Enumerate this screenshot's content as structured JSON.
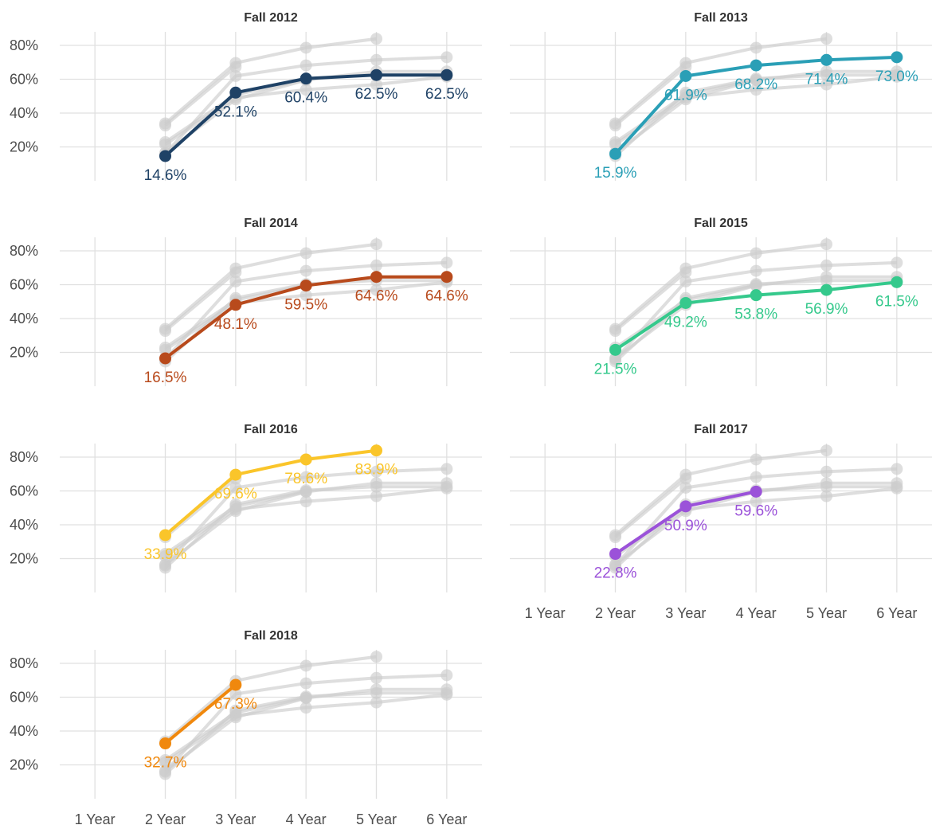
{
  "chart_data": {
    "type": "line",
    "x_categories": [
      "1 Year",
      "2 Year",
      "3 Year",
      "4 Year",
      "5 Year",
      "6 Year"
    ],
    "y_ticks": [
      20,
      40,
      60,
      80
    ],
    "y_tick_labels": [
      "20%",
      "40%",
      "60%",
      "80%"
    ],
    "ylim": [
      0,
      88
    ],
    "grid": true,
    "panels": [
      {
        "title": "Fall 2012",
        "color": "#1f4266",
        "values": [
          null,
          14.6,
          52.1,
          60.4,
          62.5,
          62.5
        ],
        "labels": [
          "",
          "14.6%",
          "52.1%",
          "60.4%",
          "62.5%",
          "62.5%"
        ]
      },
      {
        "title": "Fall 2013",
        "color": "#2a9fb6",
        "values": [
          null,
          15.9,
          61.9,
          68.2,
          71.4,
          73.0
        ],
        "labels": [
          "",
          "15.9%",
          "61.9%",
          "68.2%",
          "71.4%",
          "73.0%"
        ]
      },
      {
        "title": "Fall 2014",
        "color": "#b84a1c",
        "values": [
          null,
          16.5,
          48.1,
          59.5,
          64.6,
          64.6
        ],
        "labels": [
          "",
          "16.5%",
          "48.1%",
          "59.5%",
          "64.6%",
          "64.6%"
        ]
      },
      {
        "title": "Fall 2015",
        "color": "#35c98c",
        "values": [
          null,
          21.5,
          49.2,
          53.8,
          56.9,
          61.5
        ],
        "labels": [
          "",
          "21.5%",
          "49.2%",
          "53.8%",
          "56.9%",
          "61.5%"
        ]
      },
      {
        "title": "Fall 2016",
        "color": "#fac52a",
        "values": [
          null,
          33.9,
          69.6,
          78.6,
          83.9,
          null
        ],
        "labels": [
          "",
          "33.9%",
          "69.6%",
          "78.6%",
          "83.9%",
          ""
        ]
      },
      {
        "title": "Fall 2017",
        "color": "#9b52d9",
        "values": [
          null,
          22.8,
          50.9,
          59.6,
          null,
          null
        ],
        "labels": [
          "",
          "22.8%",
          "50.9%",
          "59.6%",
          "",
          ""
        ]
      },
      {
        "title": "Fall 2018",
        "color": "#f0880d",
        "values": [
          null,
          32.7,
          67.3,
          null,
          null,
          null
        ],
        "labels": [
          "",
          "32.7%",
          "67.3%",
          "",
          "",
          ""
        ]
      }
    ],
    "background_series_color": "#cccccc"
  }
}
